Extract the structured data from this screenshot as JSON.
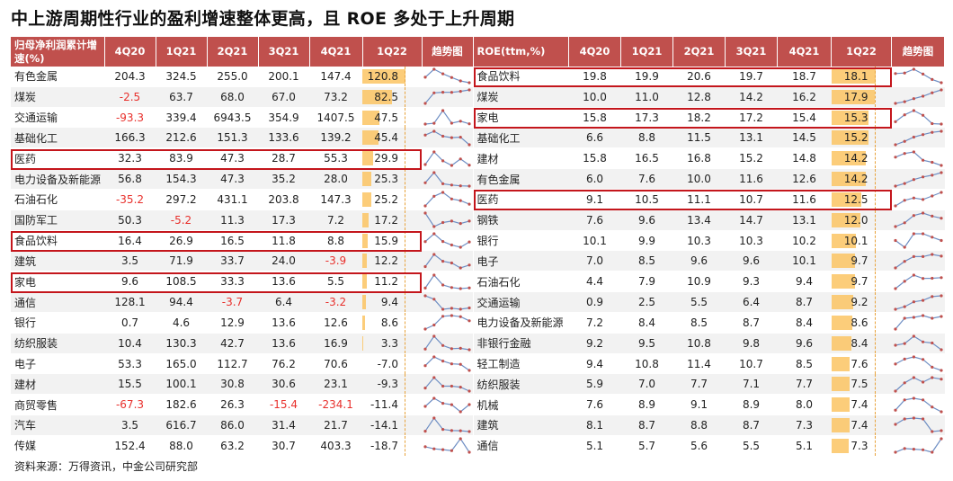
{
  "title": "中上游周期性行业的盈利增速整体更高，且 ROE 多处于上升周期",
  "source": "资料来源：万得资讯，中金公司研究部",
  "colors": {
    "header": "#C0504D",
    "bar": "#FBC463",
    "highlight": "#C4161C",
    "negative": "#E8302C",
    "sparkline_line": "#6F8FC4",
    "sparkline_dot": "#C0504D"
  },
  "chart_data": [
    {
      "type": "table",
      "headers": [
        "归母净利润累计增速(%)",
        "4Q20",
        "1Q21",
        "2Q21",
        "3Q21",
        "4Q21",
        "1Q22",
        "趋势图"
      ],
      "highlighted_rows": [
        "医药",
        "食品饮料",
        "家电"
      ],
      "rows": [
        {
          "name": "有色金属",
          "values": [
            "204.3",
            "324.5",
            "255.0",
            "200.1",
            "147.4",
            "120.8"
          ]
        },
        {
          "name": "煤炭",
          "values": [
            "-2.5",
            "63.7",
            "68.0",
            "67.0",
            "73.2",
            "82.5"
          ]
        },
        {
          "name": "交通运输",
          "values": [
            "-93.3",
            "339.4",
            "6943.5",
            "354.9",
            "1407.5",
            "47.5"
          ]
        },
        {
          "name": "基础化工",
          "values": [
            "166.3",
            "212.6",
            "151.3",
            "133.6",
            "139.2",
            "45.4"
          ]
        },
        {
          "name": "医药",
          "values": [
            "32.3",
            "83.9",
            "47.3",
            "28.7",
            "55.3",
            "29.9"
          ]
        },
        {
          "name": "电力设备及新能源",
          "values": [
            "56.8",
            "154.3",
            "47.3",
            "35.2",
            "28.0",
            "25.3"
          ]
        },
        {
          "name": "石油石化",
          "values": [
            "-35.2",
            "297.2",
            "431.1",
            "203.8",
            "147.3",
            "25.2"
          ]
        },
        {
          "name": "国防军工",
          "values": [
            "50.3",
            "-5.2",
            "11.3",
            "17.3",
            "7.2",
            "17.2"
          ]
        },
        {
          "name": "食品饮料",
          "values": [
            "16.4",
            "26.9",
            "16.5",
            "11.8",
            "8.8",
            "15.9"
          ]
        },
        {
          "name": "建筑",
          "values": [
            "3.5",
            "71.9",
            "33.7",
            "24.0",
            "-3.9",
            "12.2"
          ]
        },
        {
          "name": "家电",
          "values": [
            "9.6",
            "108.5",
            "33.3",
            "13.6",
            "5.5",
            "11.2"
          ]
        },
        {
          "name": "通信",
          "values": [
            "128.1",
            "94.4",
            "-3.7",
            "6.4",
            "-3.2",
            "9.4"
          ]
        },
        {
          "name": "银行",
          "values": [
            "0.7",
            "4.6",
            "12.9",
            "13.6",
            "12.6",
            "8.6"
          ]
        },
        {
          "name": "纺织服装",
          "values": [
            "10.4",
            "130.3",
            "42.7",
            "13.6",
            "16.9",
            "3.3"
          ]
        },
        {
          "name": "电子",
          "values": [
            "53.3",
            "165.0",
            "112.7",
            "76.2",
            "70.6",
            "-7.0"
          ]
        },
        {
          "name": "建材",
          "values": [
            "15.5",
            "100.1",
            "30.8",
            "30.6",
            "23.1",
            "-9.3"
          ]
        },
        {
          "name": "商贸零售",
          "values": [
            "-67.3",
            "182.6",
            "26.3",
            "-15.4",
            "-234.1",
            "-11.4"
          ]
        },
        {
          "name": "汽车",
          "values": [
            "3.5",
            "616.7",
            "86.0",
            "31.4",
            "21.7",
            "-14.1"
          ]
        },
        {
          "name": "传媒",
          "values": [
            "152.4",
            "88.0",
            "63.2",
            "30.7",
            "403.3",
            "-18.7"
          ]
        }
      ]
    },
    {
      "type": "table",
      "headers": [
        "ROE(ttm,%)",
        "4Q20",
        "1Q21",
        "2Q21",
        "3Q21",
        "4Q21",
        "1Q22",
        "趋势图"
      ],
      "highlighted_rows": [
        "食品饮料",
        "家电",
        "医药"
      ],
      "rows": [
        {
          "name": "食品饮料",
          "values": [
            "19.8",
            "19.9",
            "20.6",
            "19.7",
            "18.7",
            "18.1"
          ]
        },
        {
          "name": "煤炭",
          "values": [
            "10.0",
            "11.0",
            "12.8",
            "14.2",
            "16.2",
            "17.9"
          ]
        },
        {
          "name": "家电",
          "values": [
            "15.8",
            "17.3",
            "18.2",
            "17.2",
            "15.4",
            "15.3"
          ]
        },
        {
          "name": "基础化工",
          "values": [
            "6.6",
            "8.8",
            "11.5",
            "13.1",
            "14.5",
            "15.2"
          ]
        },
        {
          "name": "建材",
          "values": [
            "15.8",
            "16.5",
            "16.8",
            "15.2",
            "14.8",
            "14.2"
          ]
        },
        {
          "name": "有色金属",
          "values": [
            "6.0",
            "7.6",
            "10.0",
            "11.6",
            "12.6",
            "14.2"
          ]
        },
        {
          "name": "医药",
          "values": [
            "9.1",
            "10.5",
            "11.1",
            "10.7",
            "11.6",
            "12.5"
          ]
        },
        {
          "name": "钢铁",
          "values": [
            "7.6",
            "9.6",
            "13.4",
            "14.7",
            "13.1",
            "12.0"
          ]
        },
        {
          "name": "银行",
          "values": [
            "10.1",
            "9.9",
            "10.3",
            "10.3",
            "10.2",
            "10.1"
          ]
        },
        {
          "name": "电子",
          "values": [
            "7.0",
            "8.5",
            "9.6",
            "9.6",
            "10.1",
            "9.7"
          ]
        },
        {
          "name": "石油石化",
          "values": [
            "4.4",
            "7.9",
            "10.9",
            "9.3",
            "9.4",
            "9.7"
          ]
        },
        {
          "name": "交通运输",
          "values": [
            "0.9",
            "2.5",
            "5.5",
            "6.4",
            "8.7",
            "9.2"
          ]
        },
        {
          "name": "电力设备及新能源",
          "values": [
            "7.2",
            "8.4",
            "8.5",
            "8.7",
            "8.4",
            "8.6"
          ]
        },
        {
          "name": "非银行金融",
          "values": [
            "9.2",
            "9.5",
            "10.8",
            "9.8",
            "9.6",
            "8.4"
          ]
        },
        {
          "name": "轻工制造",
          "values": [
            "9.4",
            "10.8",
            "11.4",
            "10.7",
            "8.5",
            "7.6"
          ]
        },
        {
          "name": "纺织服装",
          "values": [
            "5.9",
            "7.0",
            "7.7",
            "7.1",
            "7.7",
            "7.5"
          ]
        },
        {
          "name": "机械",
          "values": [
            "7.6",
            "8.9",
            "9.1",
            "8.9",
            "8.0",
            "7.4"
          ]
        },
        {
          "name": "建筑",
          "values": [
            "8.1",
            "8.7",
            "8.8",
            "8.7",
            "7.3",
            "7.4"
          ]
        },
        {
          "name": "通信",
          "values": [
            "5.1",
            "5.7",
            "5.6",
            "5.5",
            "5.1",
            "7.3"
          ]
        }
      ]
    }
  ]
}
